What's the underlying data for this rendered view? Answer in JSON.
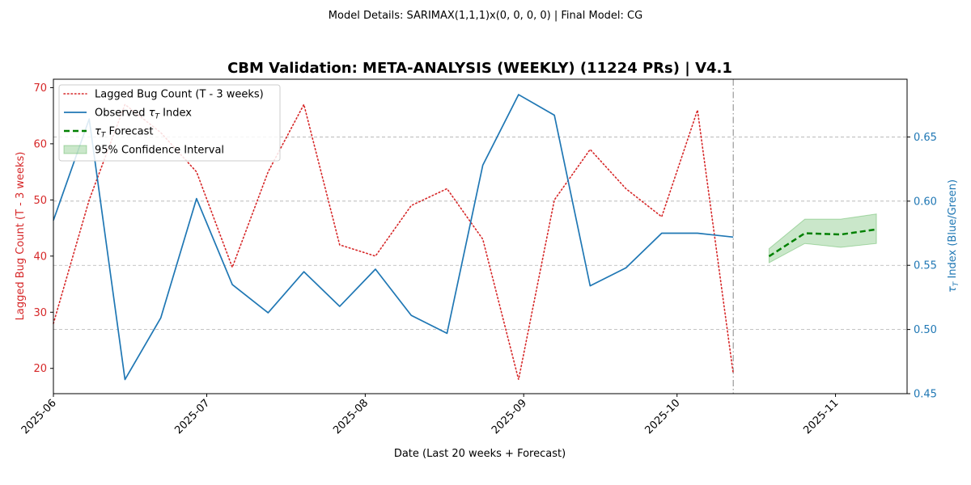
{
  "chart_data": {
    "type": "line",
    "suptitle": "Model Details: SARIMAX(1,1,1)x(0, 0, 0, 0) | Final Model: CG",
    "title": "CBM Validation: META-ANALYSIS (WEEKLY) (11224 PRs) | V4.1",
    "xlabel": "Date (Last 20 weeks + Forecast)",
    "ylabel_left": "Lagged Bug Count (T - 3 weeks)",
    "ylabel_right_prefix": "τ",
    "ylabel_right_sub": "T",
    "ylabel_right_suffix": " Index (Blue/Green)",
    "xlim": [
      "2025-06-01",
      "2025-11-15"
    ],
    "ylim_left": [
      15.5,
      71.5
    ],
    "ylim_right": [
      0.45,
      0.695
    ],
    "x_ticks": [
      "2025-06",
      "2025-07",
      "2025-08",
      "2025-09",
      "2025-10",
      "2025-11"
    ],
    "y_ticks_left": [
      "20",
      "30",
      "40",
      "50",
      "60",
      "70"
    ],
    "y_ticks_right": [
      "0.45",
      "0.50",
      "0.55",
      "0.60",
      "0.65"
    ],
    "grid": true,
    "legend_position": "top-left",
    "forecast_start": "2025-10-12",
    "colors": {
      "bug": "#d62728",
      "tau": "#1f77b4",
      "forecast": "#008000",
      "ci": "#2ca02c",
      "right_axis": "#1f77b4",
      "left_axis": "#d62728"
    },
    "series": [
      {
        "name": "Lagged Bug Count (T - 3 weeks)",
        "axis": "left",
        "style": "dotted",
        "x": [
          "2025-06-01",
          "2025-06-08",
          "2025-06-15",
          "2025-06-22",
          "2025-06-29",
          "2025-07-06",
          "2025-07-13",
          "2025-07-20",
          "2025-07-27",
          "2025-08-03",
          "2025-08-10",
          "2025-08-17",
          "2025-08-24",
          "2025-08-31",
          "2025-09-07",
          "2025-09-14",
          "2025-09-21",
          "2025-09-28",
          "2025-10-05",
          "2025-10-12"
        ],
        "y": [
          28,
          50,
          67,
          62,
          55,
          38,
          55,
          67,
          42,
          40,
          49,
          52,
          43,
          18,
          50,
          59,
          52,
          47,
          66,
          19
        ]
      },
      {
        "name_prefix": "Observed ",
        "name_sym": "τ",
        "name_sub": "T",
        "name_suffix": " Index",
        "axis": "right",
        "style": "solid",
        "x": [
          "2025-06-01",
          "2025-06-08",
          "2025-06-15",
          "2025-06-22",
          "2025-06-29",
          "2025-07-06",
          "2025-07-13",
          "2025-07-20",
          "2025-07-27",
          "2025-08-03",
          "2025-08-10",
          "2025-08-17",
          "2025-08-24",
          "2025-08-31",
          "2025-09-07",
          "2025-09-14",
          "2025-09-21",
          "2025-09-28",
          "2025-10-05",
          "2025-10-12"
        ],
        "y": [
          0.585,
          0.664,
          0.461,
          0.509,
          0.602,
          0.535,
          0.513,
          0.545,
          0.518,
          0.547,
          0.511,
          0.497,
          0.628,
          0.683,
          0.667,
          0.534,
          0.548,
          0.575,
          0.575,
          0.572
        ]
      },
      {
        "name_sym": "τ",
        "name_sub": "T",
        "name_suffix": " Forecast",
        "axis": "right",
        "style": "dashed",
        "x": [
          "2025-10-19",
          "2025-10-26",
          "2025-11-02",
          "2025-11-09"
        ],
        "y": [
          0.557,
          0.575,
          0.574,
          0.578
        ]
      }
    ],
    "confidence_interval": {
      "name": "95% Confidence Interval",
      "axis": "right",
      "x": [
        "2025-10-19",
        "2025-10-26",
        "2025-11-02",
        "2025-11-09"
      ],
      "lower": [
        0.552,
        0.567,
        0.564,
        0.567
      ],
      "upper": [
        0.563,
        0.586,
        0.586,
        0.59
      ]
    }
  }
}
